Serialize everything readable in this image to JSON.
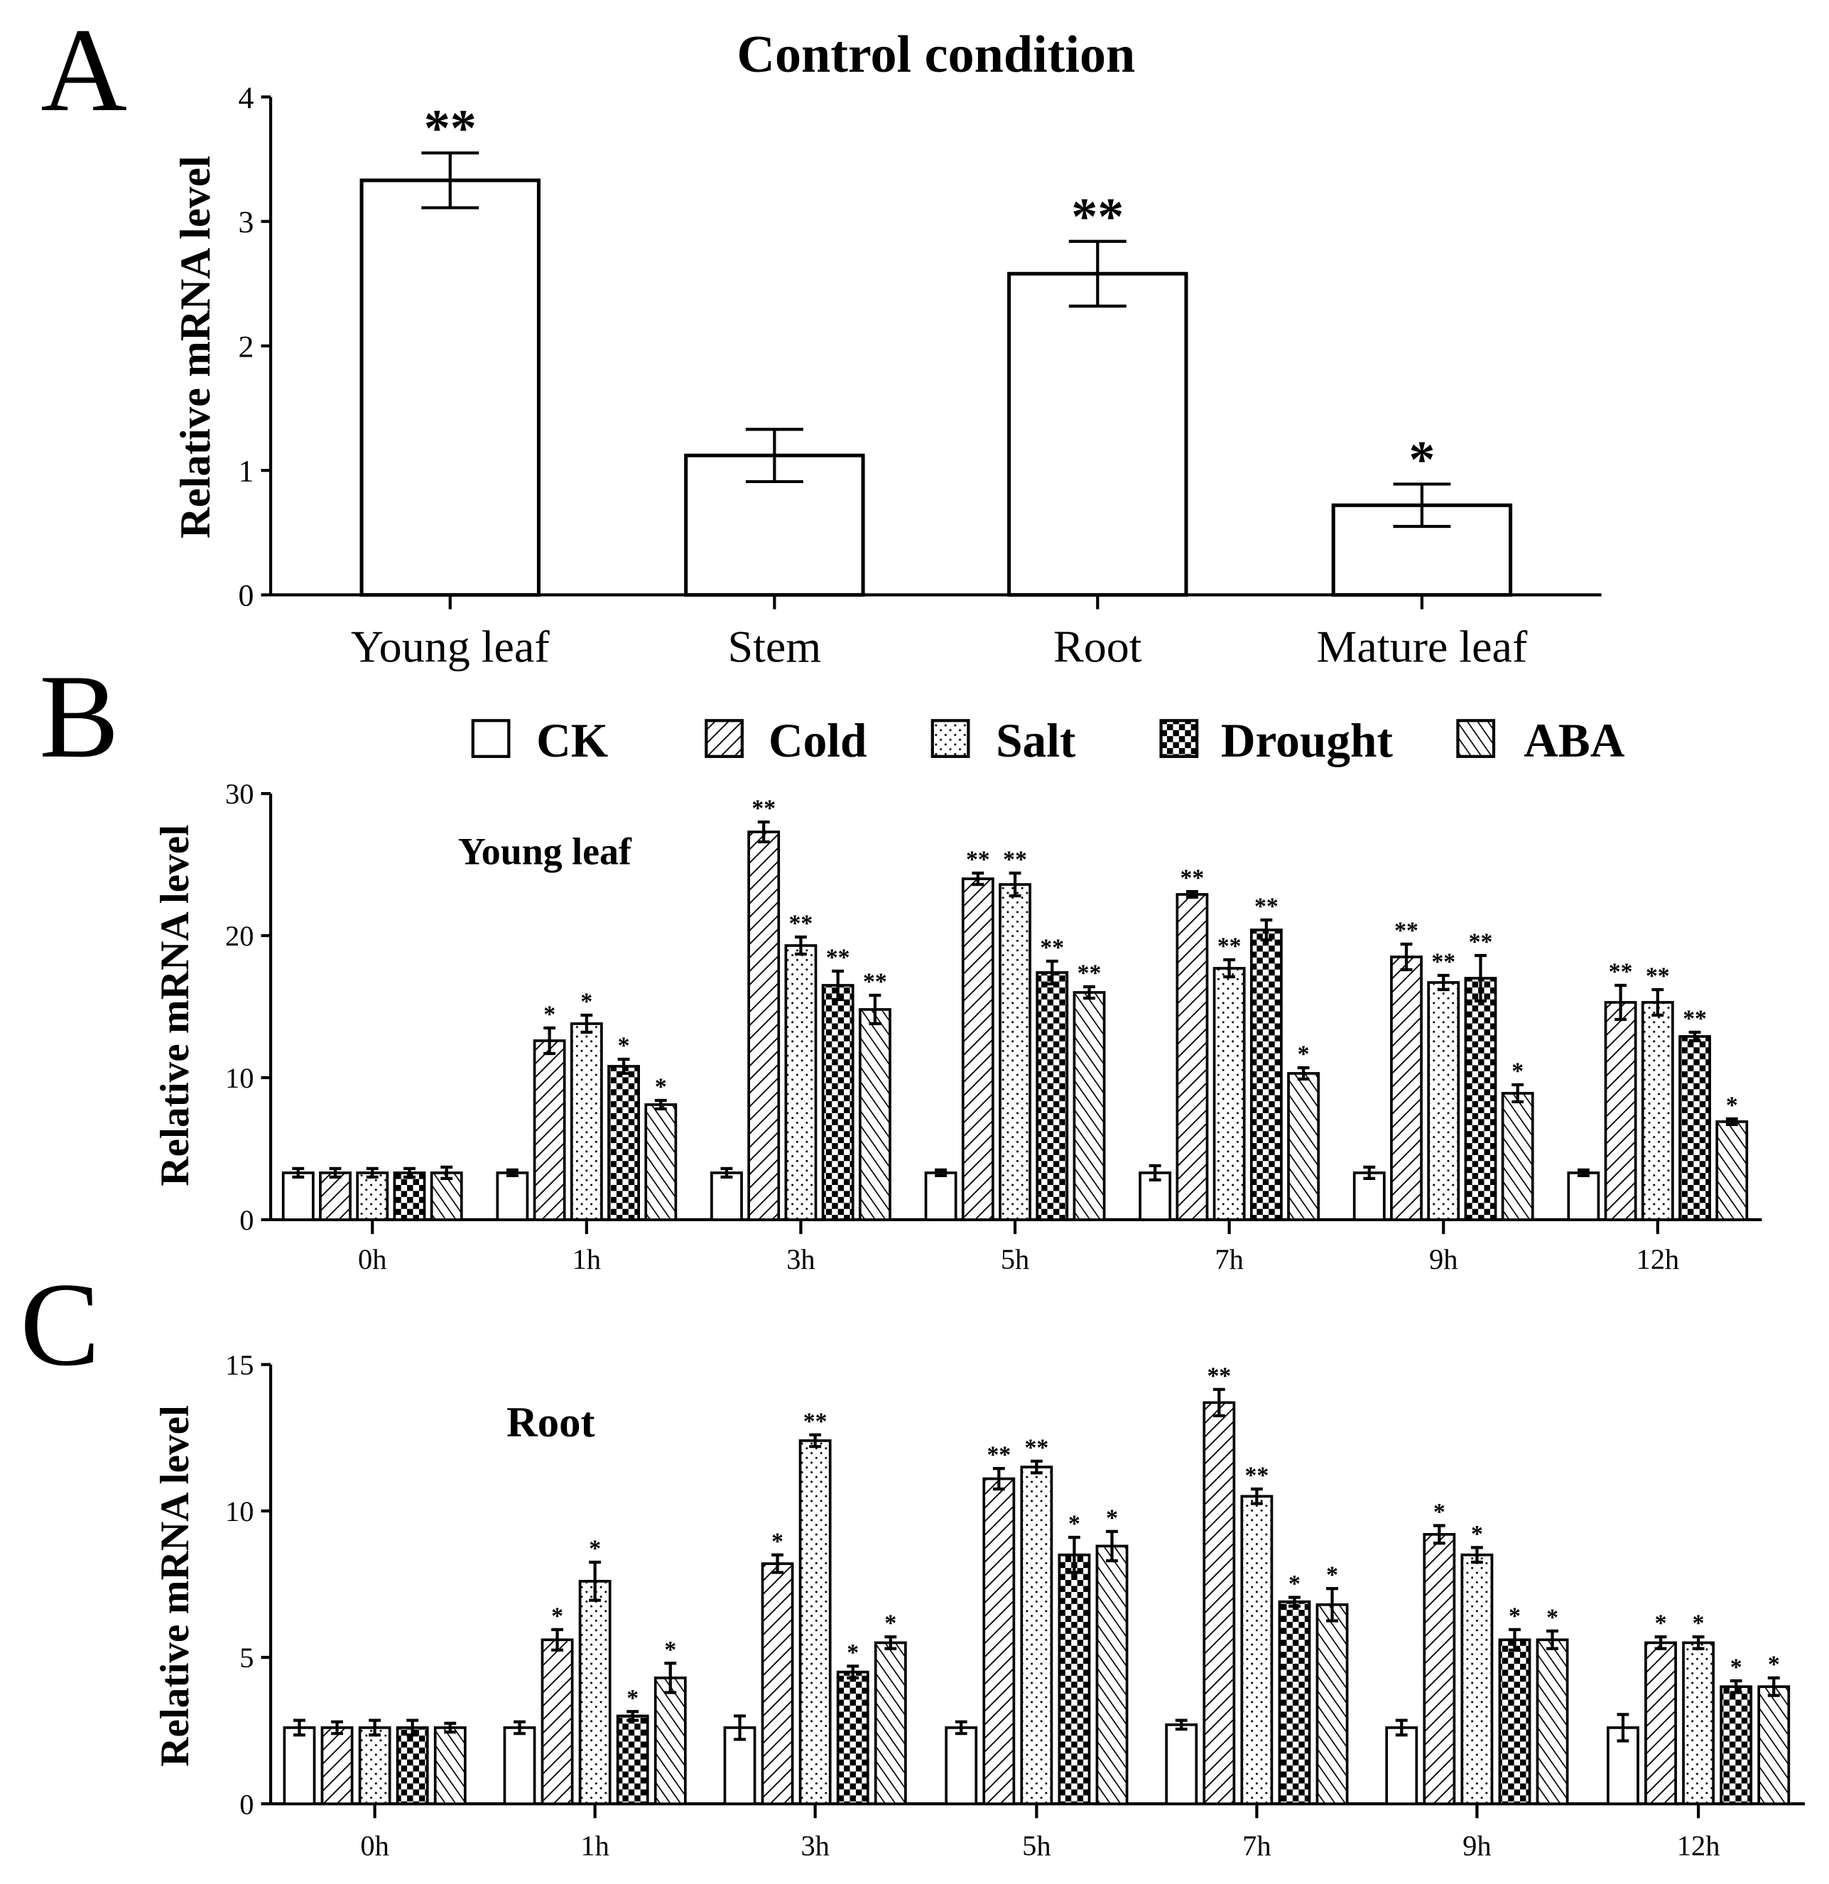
{
  "chart_data": [
    {
      "panel": "A",
      "type": "bar",
      "title": "Control condition",
      "ylabel": "Relative mRNA level",
      "xlabel": "",
      "ylim": [
        0,
        4
      ],
      "yticks": [
        "0",
        "1",
        "2",
        "3",
        "4"
      ],
      "categories": [
        "Young leaf",
        "Stem",
        "Root",
        "Mature leaf"
      ],
      "values": [
        3.33,
        1.12,
        2.58,
        0.72
      ],
      "errors": [
        0.22,
        0.21,
        0.26,
        0.17
      ],
      "significance": [
        "**",
        "",
        "**",
        "*"
      ]
    },
    {
      "panel": "B",
      "type": "bar",
      "subtitle": "Young leaf",
      "ylabel": "Relative mRNA level",
      "ylim": [
        0,
        30
      ],
      "yticks": [
        "0",
        "10",
        "20",
        "30"
      ],
      "categories": [
        "0h",
        "1h",
        "3h",
        "5h",
        "7h",
        "9h",
        "12h"
      ],
      "series": [
        {
          "name": "CK",
          "pattern": "blank",
          "values": [
            3.3,
            3.3,
            3.3,
            3.3,
            3.3,
            3.3,
            3.3
          ],
          "errors": [
            0.3,
            0.2,
            0.3,
            0.2,
            0.5,
            0.4,
            0.2
          ],
          "significance": [
            "",
            "",
            "",
            "",
            "",
            "",
            ""
          ]
        },
        {
          "name": "Cold",
          "pattern": "diagonal",
          "values": [
            3.3,
            12.6,
            27.3,
            24.0,
            22.9,
            18.5,
            15.3
          ],
          "errors": [
            0.3,
            0.9,
            0.7,
            0.4,
            0.2,
            0.9,
            1.2
          ],
          "significance": [
            "",
            "*",
            "**",
            "**",
            "**",
            "**",
            "**"
          ]
        },
        {
          "name": "Salt",
          "pattern": "dots",
          "values": [
            3.3,
            13.8,
            19.3,
            23.6,
            17.7,
            16.7,
            15.3
          ],
          "errors": [
            0.3,
            0.6,
            0.6,
            0.8,
            0.6,
            0.5,
            0.9
          ],
          "significance": [
            "",
            "*",
            "**",
            "**",
            "**",
            "**",
            "**"
          ]
        },
        {
          "name": "Drought",
          "pattern": "checker",
          "values": [
            3.3,
            10.8,
            16.5,
            17.4,
            20.4,
            17.0,
            12.9
          ],
          "errors": [
            0.3,
            0.5,
            1.0,
            0.8,
            0.7,
            1.6,
            0.3
          ],
          "significance": [
            "",
            "*",
            "**",
            "**",
            "**",
            "**",
            "**"
          ]
        },
        {
          "name": "ABA",
          "pattern": "antidiagonal",
          "values": [
            3.3,
            8.1,
            14.8,
            16.0,
            10.3,
            8.9,
            6.9
          ],
          "errors": [
            0.4,
            0.3,
            1.0,
            0.4,
            0.4,
            0.6,
            0.2
          ],
          "significance": [
            "",
            "*",
            "**",
            "**",
            "*",
            "*",
            "*"
          ]
        }
      ]
    },
    {
      "panel": "C",
      "type": "bar",
      "subtitle": "Root",
      "ylabel": "Relative mRNA level",
      "ylim": [
        0,
        15
      ],
      "yticks": [
        "0",
        "5",
        "10",
        "15"
      ],
      "categories": [
        "0h",
        "1h",
        "3h",
        "5h",
        "7h",
        "9h",
        "12h"
      ],
      "series": [
        {
          "name": "CK",
          "pattern": "blank",
          "values": [
            2.6,
            2.6,
            2.6,
            2.6,
            2.7,
            2.6,
            2.6
          ],
          "errors": [
            0.25,
            0.2,
            0.4,
            0.2,
            0.15,
            0.25,
            0.45
          ],
          "significance": [
            "",
            "",
            "",
            "",
            "",
            "",
            ""
          ]
        },
        {
          "name": "Cold",
          "pattern": "diagonal",
          "values": [
            2.6,
            5.6,
            8.2,
            11.1,
            13.7,
            9.2,
            5.5
          ],
          "errors": [
            0.2,
            0.35,
            0.3,
            0.35,
            0.45,
            0.3,
            0.2
          ],
          "significance": [
            "",
            "*",
            "*",
            "**",
            "**",
            "*",
            "*"
          ]
        },
        {
          "name": "Salt",
          "pattern": "dots",
          "values": [
            2.6,
            7.6,
            12.4,
            11.5,
            10.5,
            8.5,
            5.5
          ],
          "errors": [
            0.25,
            0.65,
            0.2,
            0.2,
            0.25,
            0.25,
            0.2
          ],
          "significance": [
            "",
            "*",
            "**",
            "**",
            "**",
            "*",
            "*"
          ]
        },
        {
          "name": "Drought",
          "pattern": "checker",
          "values": [
            2.6,
            3.0,
            4.5,
            8.5,
            6.9,
            5.6,
            4.0
          ],
          "errors": [
            0.25,
            0.15,
            0.2,
            0.6,
            0.15,
            0.35,
            0.2
          ],
          "significance": [
            "",
            "*",
            "*",
            "*",
            "*",
            "*",
            "*"
          ]
        },
        {
          "name": "ABA",
          "pattern": "antidiagonal",
          "values": [
            2.6,
            4.3,
            5.5,
            8.8,
            6.8,
            5.6,
            4.0
          ],
          "errors": [
            0.15,
            0.5,
            0.2,
            0.5,
            0.55,
            0.3,
            0.3
          ],
          "significance": [
            "",
            "*",
            "*",
            "*",
            "*",
            "*",
            "*"
          ]
        }
      ]
    }
  ],
  "panel_letters": [
    "A",
    "B",
    "C"
  ],
  "legend": [
    "CK",
    "Cold",
    "Salt",
    "Drought",
    "ABA"
  ]
}
